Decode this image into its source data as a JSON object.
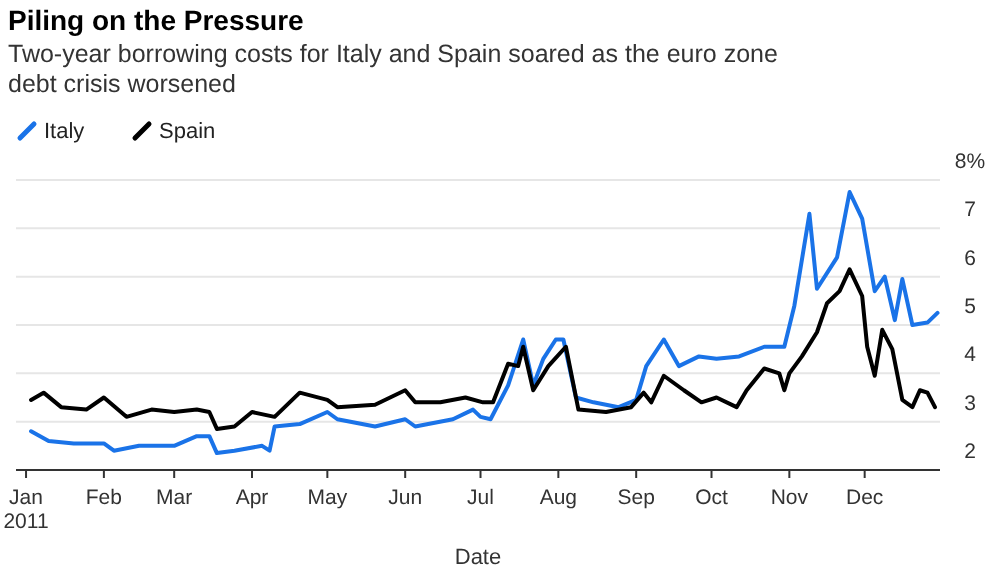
{
  "chart_data": {
    "type": "line",
    "title": "Piling on the Pressure",
    "subtitle": "Two-year borrowing costs for Italy and Spain soared as the euro zone debt crisis worsened",
    "xlabel": "Date",
    "legend": "top left",
    "grid": "y",
    "line_style": "solid",
    "marker": "none",
    "xlim": [
      "2010-12-28",
      "2011-12-31"
    ],
    "xticks": [
      {
        "value": "2011-01-01",
        "label": "Jan\n2011"
      },
      {
        "value": "2011-02-01",
        "label": "Feb"
      },
      {
        "value": "2011-03-01",
        "label": "Mar"
      },
      {
        "value": "2011-04-01",
        "label": "Apr"
      },
      {
        "value": "2011-05-01",
        "label": "May"
      },
      {
        "value": "2011-06-01",
        "label": "Jun"
      },
      {
        "value": "2011-07-01",
        "label": "Jul"
      },
      {
        "value": "2011-08-01",
        "label": "Aug"
      },
      {
        "value": "2011-09-01",
        "label": "Sep"
      },
      {
        "value": "2011-10-01",
        "label": "Oct"
      },
      {
        "value": "2011-11-01",
        "label": "Nov"
      },
      {
        "value": "2011-12-01",
        "label": "Dec"
      }
    ],
    "ylim": [
      2,
      8
    ],
    "yticks": [
      2,
      3,
      4,
      5,
      6,
      7,
      {
        "value": 8,
        "label": "8%"
      }
    ],
    "series": [
      {
        "name": "Italy",
        "color": "#1a73e8",
        "x": [
          "2011-01-03",
          "2011-01-10",
          "2011-01-20",
          "2011-02-01",
          "2011-02-05",
          "2011-02-15",
          "2011-03-01",
          "2011-03-10",
          "2011-03-15",
          "2011-03-18",
          "2011-03-25",
          "2011-04-05",
          "2011-04-08",
          "2011-04-10",
          "2011-04-20",
          "2011-05-01",
          "2011-05-05",
          "2011-05-20",
          "2011-06-01",
          "2011-06-05",
          "2011-06-20",
          "2011-06-28",
          "2011-07-01",
          "2011-07-05",
          "2011-07-12",
          "2011-07-18",
          "2011-07-22",
          "2011-07-26",
          "2011-07-31",
          "2011-08-03",
          "2011-08-08",
          "2011-08-15",
          "2011-08-25",
          "2011-09-01",
          "2011-09-05",
          "2011-09-12",
          "2011-09-18",
          "2011-09-26",
          "2011-10-03",
          "2011-10-12",
          "2011-10-22",
          "2011-10-30",
          "2011-11-03",
          "2011-11-09",
          "2011-11-12",
          "2011-11-20",
          "2011-11-25",
          "2011-11-30",
          "2011-12-05",
          "2011-12-09",
          "2011-12-13",
          "2011-12-16",
          "2011-12-20",
          "2011-12-26",
          "2011-12-30"
        ],
        "values": [
          2.8,
          2.6,
          2.55,
          2.55,
          2.4,
          2.5,
          2.5,
          2.7,
          2.7,
          2.35,
          2.4,
          2.5,
          2.4,
          2.9,
          2.95,
          3.2,
          3.05,
          2.9,
          3.05,
          2.9,
          3.05,
          3.25,
          3.1,
          3.05,
          3.75,
          4.7,
          3.75,
          4.3,
          4.7,
          4.7,
          3.5,
          3.4,
          3.3,
          3.45,
          4.15,
          4.7,
          4.15,
          4.35,
          4.3,
          4.35,
          4.55,
          4.55,
          5.4,
          7.3,
          5.75,
          6.4,
          7.75,
          7.2,
          5.7,
          6.0,
          5.1,
          5.95,
          5.0,
          5.05,
          5.25
        ]
      },
      {
        "name": "Spain",
        "color": "#000000",
        "x": [
          "2011-01-03",
          "2011-01-08",
          "2011-01-15",
          "2011-01-25",
          "2011-02-01",
          "2011-02-10",
          "2011-02-20",
          "2011-03-01",
          "2011-03-10",
          "2011-03-15",
          "2011-03-18",
          "2011-03-25",
          "2011-04-01",
          "2011-04-10",
          "2011-04-20",
          "2011-05-01",
          "2011-05-05",
          "2011-05-20",
          "2011-06-01",
          "2011-06-05",
          "2011-06-15",
          "2011-06-25",
          "2011-07-02",
          "2011-07-06",
          "2011-07-12",
          "2011-07-16",
          "2011-07-18",
          "2011-07-22",
          "2011-07-28",
          "2011-08-04",
          "2011-08-09",
          "2011-08-20",
          "2011-08-30",
          "2011-09-04",
          "2011-09-07",
          "2011-09-12",
          "2011-09-20",
          "2011-09-27",
          "2011-10-03",
          "2011-10-11",
          "2011-10-15",
          "2011-10-22",
          "2011-10-28",
          "2011-10-30",
          "2011-11-01",
          "2011-11-06",
          "2011-11-12",
          "2011-11-16",
          "2011-11-21",
          "2011-11-25",
          "2011-11-30",
          "2011-12-02",
          "2011-12-05",
          "2011-12-08",
          "2011-12-12",
          "2011-12-16",
          "2011-12-20",
          "2011-12-23",
          "2011-12-26",
          "2011-12-29"
        ],
        "values": [
          3.45,
          3.6,
          3.3,
          3.25,
          3.5,
          3.1,
          3.25,
          3.2,
          3.25,
          3.2,
          2.85,
          2.9,
          3.2,
          3.1,
          3.6,
          3.45,
          3.3,
          3.35,
          3.65,
          3.4,
          3.4,
          3.5,
          3.4,
          3.4,
          4.2,
          4.15,
          4.55,
          3.65,
          4.15,
          4.55,
          3.25,
          3.2,
          3.3,
          3.6,
          3.4,
          3.95,
          3.65,
          3.4,
          3.5,
          3.3,
          3.65,
          4.1,
          4.0,
          3.65,
          4.0,
          4.35,
          4.85,
          5.45,
          5.7,
          6.15,
          5.6,
          4.55,
          3.95,
          4.9,
          4.5,
          3.45,
          3.3,
          3.65,
          3.6,
          3.3
        ]
      }
    ]
  }
}
